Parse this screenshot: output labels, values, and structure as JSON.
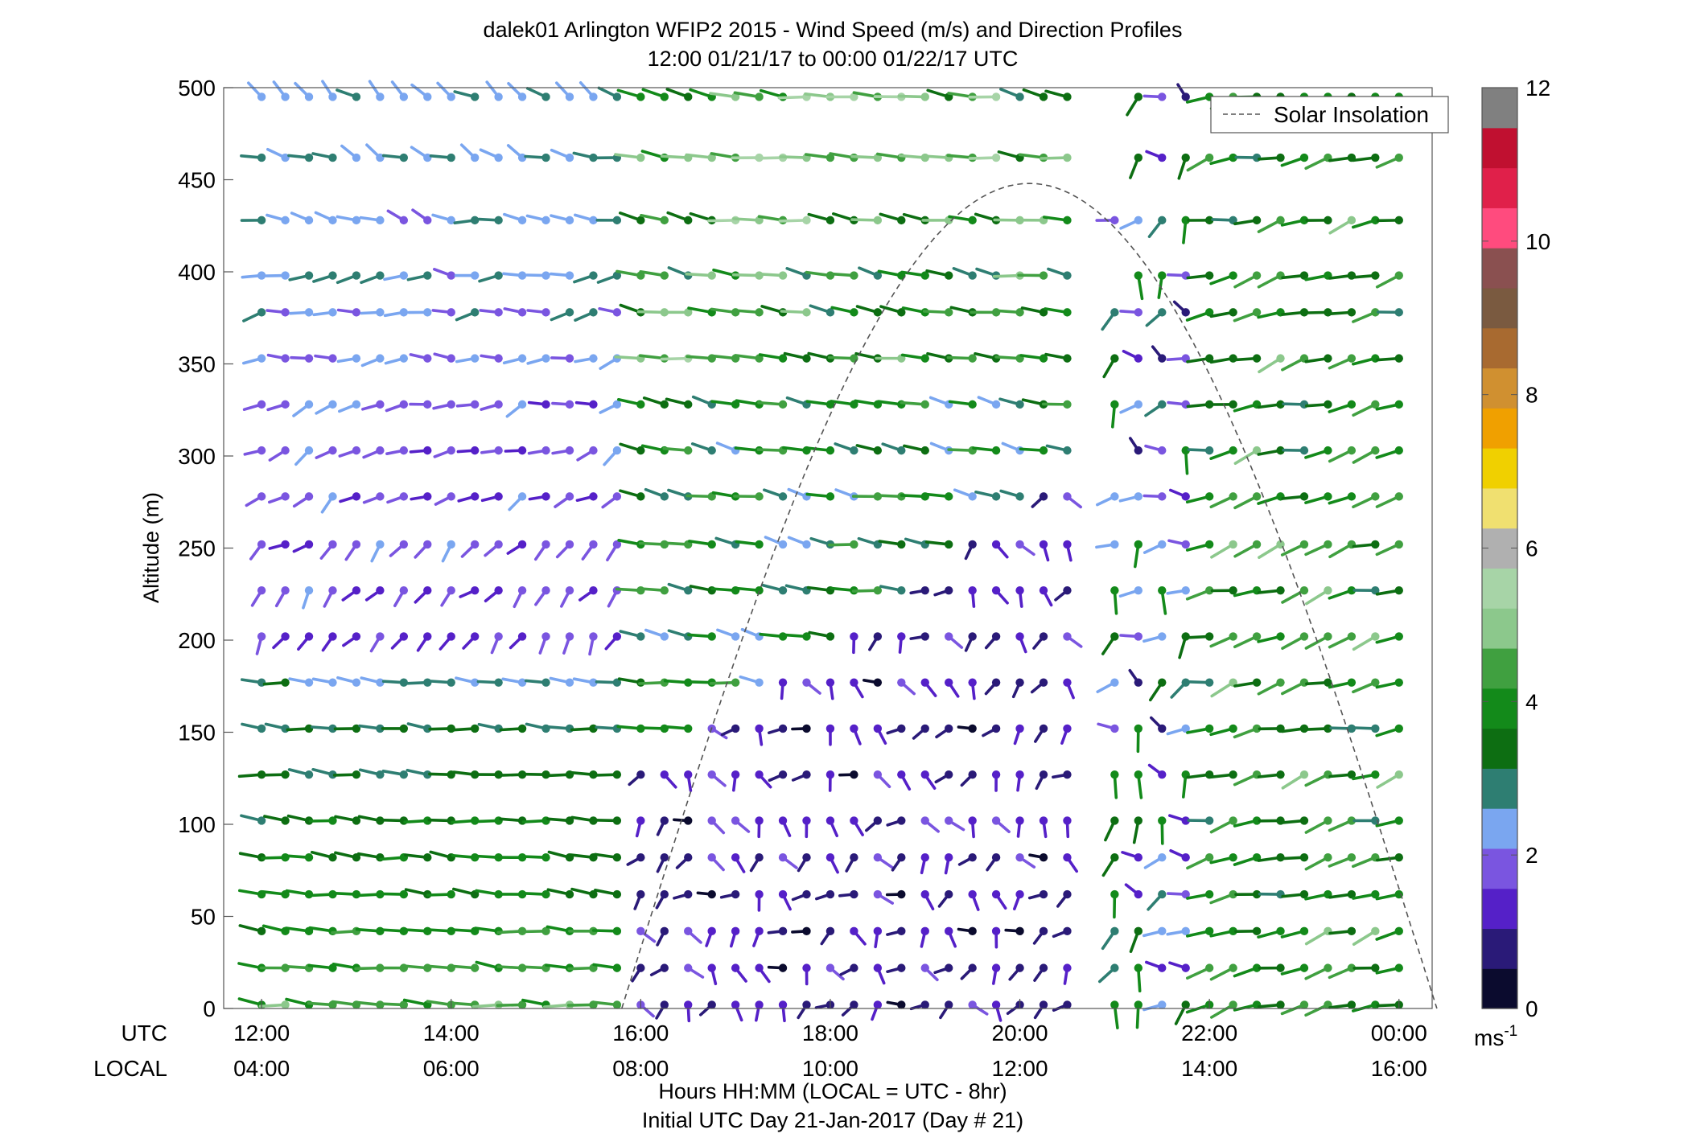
{
  "chart_data": {
    "type": "wind-barb-profile",
    "title": "dalek01 Arlington WFIP2 2015 - Wind Speed (m/s) and Direction Profiles",
    "subtitle": "12:00 01/21/17 to 00:00 01/22/17  UTC",
    "ylabel": "Altitude (m)",
    "xlabel": "Hours HH:MM  (LOCAL = UTC - 8hr)",
    "xlabel2": "Initial UTC Day 21-Jan-2017 (Day # 21)",
    "row_label_utc": "UTC",
    "row_label_local": "LOCAL",
    "x_ticks_utc": [
      "12:00",
      "14:00",
      "16:00",
      "18:00",
      "20:00",
      "22:00",
      "00:00"
    ],
    "x_ticks_local": [
      "04:00",
      "06:00",
      "08:00",
      "10:00",
      "12:00",
      "14:00",
      "16:00"
    ],
    "x_tick_hours": [
      12,
      14,
      16,
      18,
      20,
      22,
      24
    ],
    "xlim_hours": [
      11.6,
      24.35
    ],
    "ylim": [
      0,
      500
    ],
    "y_ticks": [
      0,
      50,
      100,
      150,
      200,
      250,
      300,
      350,
      400,
      450,
      500
    ],
    "colorbar": {
      "unit": "ms",
      "unit_exp": "-1",
      "range": [
        0,
        12
      ],
      "ticks": [
        "0",
        "2",
        "4",
        "6",
        "8",
        "10",
        "12"
      ],
      "colors": [
        "#0b0b2e",
        "#2a1a78",
        "#5520c8",
        "#7a55e0",
        "#7aa6f0",
        "#2e7e72",
        "#0d6e12",
        "#138a1a",
        "#40a040",
        "#8cc88c",
        "#a7d4a7",
        "#b0b0b0",
        "#f0e070",
        "#f0d000",
        "#f0a000",
        "#d09030",
        "#a86a30",
        "#7a5a40",
        "#8a5050",
        "#ff4b7e",
        "#e0204a",
        "#c01030",
        "#808080"
      ]
    },
    "legend": {
      "label": "Solar Insolation",
      "position": "top-right",
      "line": "dashed",
      "color": "#555555"
    },
    "solar_insolation": {
      "start_hour": 15.8,
      "end_hour": 24.4,
      "peak_hour": 20.1,
      "peak_altitude": 448
    },
    "grid": false,
    "heights_m": [
      2,
      22,
      42,
      62,
      82,
      102,
      127,
      152,
      177,
      202,
      227,
      252,
      278,
      303,
      328,
      353,
      378,
      398,
      428,
      462,
      495
    ],
    "time_step_hours": 0.25,
    "time_start_hour": 12.0,
    "series": [
      {
        "segment": "12:00-16:00",
        "altitude_band": "0-200 m",
        "speed_range_ms": [
          1.5,
          4.5
        ],
        "dominant_direction": "easterly",
        "color_family": "green / light blue"
      },
      {
        "segment": "12:00-16:00",
        "altitude_band": "200-400 m",
        "speed_range_ms": [
          0.8,
          2.5
        ],
        "dominant_direction": "southerly to easterly",
        "color_family": "purple / blue"
      },
      {
        "segment": "16:00-21:00",
        "altitude_band": "0-250 m",
        "speed_range_ms": [
          0.3,
          2.0
        ],
        "dominant_direction": "variable",
        "color_family": "dark purple"
      },
      {
        "segment": "16:00-21:00",
        "altitude_band": "250-500 m",
        "speed_range_ms": [
          1.5,
          4.8
        ],
        "dominant_direction": "easterly",
        "color_family": "green"
      },
      {
        "segment": "21:00-22:00",
        "altitude_band": "0-500 m",
        "speed_range_ms": [
          0.5,
          7.0
        ],
        "dominant_direction": "variable",
        "color_family": "mixed"
      },
      {
        "segment": "22:00-24:00",
        "altitude_band": "0-500 m",
        "speed_range_ms": [
          2.5,
          5.0
        ],
        "dominant_direction": "westerly",
        "color_family": "green"
      }
    ]
  }
}
